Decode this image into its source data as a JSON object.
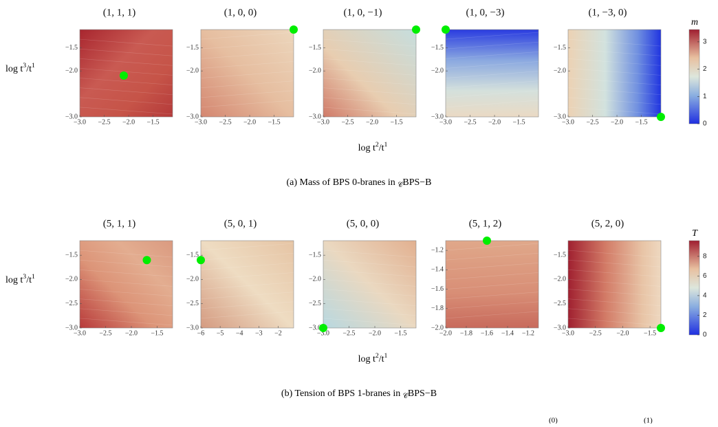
{
  "figure": {
    "rows": [
      {
        "x_label": [
          "log t",
          "2",
          "/t",
          "1"
        ],
        "y_label": [
          "log t",
          "3",
          "/t",
          "1"
        ],
        "caption": [
          "(a) Mass of BPS 0-branes in ",
          "𝒞",
          "BPS−B"
        ],
        "colorbar": {
          "label": "m",
          "lim": [
            0,
            3.45
          ],
          "ticks": [
            0,
            1,
            2,
            3
          ]
        },
        "panels": [
          {
            "title": "(1, 1, 1)",
            "xlim": [
              -3.0,
              -1.1
            ],
            "ylim": [
              -3.0,
              -1.1
            ],
            "xticks": [
              {
                "value": -3.0,
                "label": "−3.0"
              },
              {
                "value": -2.5,
                "label": "−2.5"
              },
              {
                "value": -2.0,
                "label": "−2.0"
              },
              {
                "value": -1.5,
                "label": "−1.5"
              }
            ],
            "yticks": [
              {
                "value": -1.5,
                "label": "−1.5"
              },
              {
                "value": -2.0,
                "label": "−2.0"
              },
              {
                "value": -3.0,
                "label": "−3.0"
              }
            ],
            "point": [
              -2.1,
              -2.1
            ]
          },
          {
            "title": "(1, 0, 0)",
            "xlim": [
              -3.0,
              -1.1
            ],
            "ylim": [
              -3.0,
              -1.1
            ],
            "xticks": [
              {
                "value": -3.0,
                "label": "−3.0"
              },
              {
                "value": -2.5,
                "label": "−2.5"
              },
              {
                "value": -2.0,
                "label": "−2.0"
              },
              {
                "value": -1.5,
                "label": "−1.5"
              }
            ],
            "yticks": [
              {
                "value": -1.5,
                "label": "−1.5"
              },
              {
                "value": -2.0,
                "label": "−2.0"
              },
              {
                "value": -3.0,
                "label": "−3.0"
              }
            ],
            "point": [
              -1.1,
              -1.1
            ]
          },
          {
            "title": "(1, 0, −1)",
            "xlim": [
              -3.0,
              -1.1
            ],
            "ylim": [
              -3.0,
              -1.1
            ],
            "xticks": [
              {
                "value": -3.0,
                "label": "−3.0"
              },
              {
                "value": -2.5,
                "label": "−2.5"
              },
              {
                "value": -2.0,
                "label": "−2.0"
              },
              {
                "value": -1.5,
                "label": "−1.5"
              }
            ],
            "yticks": [
              {
                "value": -1.5,
                "label": "−1.5"
              },
              {
                "value": -2.0,
                "label": "−2.0"
              },
              {
                "value": -3.0,
                "label": "−3.0"
              }
            ],
            "point": [
              -1.1,
              -1.1
            ]
          },
          {
            "title": "(1, 0, −3)",
            "xlim": [
              -3.0,
              -1.1
            ],
            "ylim": [
              -3.0,
              -1.1
            ],
            "xticks": [
              {
                "value": -3.0,
                "label": "−3.0"
              },
              {
                "value": -2.5,
                "label": "−2.5"
              },
              {
                "value": -2.0,
                "label": "−2.0"
              },
              {
                "value": -1.5,
                "label": "−1.5"
              }
            ],
            "yticks": [
              {
                "value": -1.5,
                "label": "−1.5"
              },
              {
                "value": -2.0,
                "label": "−2.0"
              },
              {
                "value": -3.0,
                "label": "−3.0"
              }
            ],
            "point": [
              -3.0,
              -1.1
            ]
          },
          {
            "title": "(1, −3, 0)",
            "xlim": [
              -3.0,
              -1.1
            ],
            "ylim": [
              -3.0,
              -1.1
            ],
            "xticks": [
              {
                "value": -3.0,
                "label": "−3.0"
              },
              {
                "value": -2.5,
                "label": "−2.5"
              },
              {
                "value": -2.0,
                "label": "−2.0"
              },
              {
                "value": -1.5,
                "label": "−1.5"
              }
            ],
            "yticks": [
              {
                "value": -1.5,
                "label": "−1.5"
              },
              {
                "value": -2.0,
                "label": "−2.0"
              },
              {
                "value": -3.0,
                "label": "−3.0"
              }
            ],
            "point": [
              -1.1,
              -3.0
            ]
          }
        ]
      },
      {
        "x_label": [
          "log t",
          "2",
          "/t",
          "1"
        ],
        "y_label": [
          "log t",
          "3",
          "/t",
          "1"
        ],
        "caption": [
          "(b) Tension of BPS 1-branes in ",
          "𝒞",
          "BPS−B"
        ],
        "colorbar": {
          "label": "T",
          "lim": [
            0,
            9.6
          ],
          "ticks": [
            0,
            2,
            4,
            6,
            8
          ]
        },
        "panels": [
          {
            "title": "(5, 1, 1)",
            "xlim": [
              -3.0,
              -1.2
            ],
            "ylim": [
              -3.0,
              -1.2
            ],
            "xticks": [
              {
                "value": -3.0,
                "label": "−3.0"
              },
              {
                "value": -2.5,
                "label": "−2.5"
              },
              {
                "value": -2.0,
                "label": "−2.0"
              },
              {
                "value": -1.5,
                "label": "−1.5"
              }
            ],
            "yticks": [
              {
                "value": -1.5,
                "label": "−1.5"
              },
              {
                "value": -2.0,
                "label": "−2.0"
              },
              {
                "value": -2.5,
                "label": "−2.5"
              },
              {
                "value": -3.0,
                "label": "−3.0"
              }
            ],
            "point": [
              -1.7,
              -1.6
            ]
          },
          {
            "title": "(5, 0, 1)",
            "xlim": [
              -6,
              -1.2
            ],
            "ylim": [
              -3.0,
              -1.2
            ],
            "xticks": [
              {
                "value": -6,
                "label": "−6"
              },
              {
                "value": -5,
                "label": "−5"
              },
              {
                "value": -4,
                "label": "−4"
              },
              {
                "value": -3,
                "label": "−3"
              },
              {
                "value": -2,
                "label": "−2"
              }
            ],
            "yticks": [
              {
                "value": -1.5,
                "label": "−1.5"
              },
              {
                "value": -2.0,
                "label": "−2.0"
              },
              {
                "value": -2.5,
                "label": "−2.5"
              },
              {
                "value": -3.0,
                "label": "−3.0"
              }
            ],
            "point": [
              -6,
              -1.6
            ]
          },
          {
            "title": "(5, 0, 0)",
            "xlim": [
              -3.0,
              -1.2
            ],
            "ylim": [
              -3.0,
              -1.2
            ],
            "xticks": [
              {
                "value": -3.0,
                "label": "−3.0"
              },
              {
                "value": -2.5,
                "label": "−2.5"
              },
              {
                "value": -2.0,
                "label": "−2.0"
              },
              {
                "value": -1.5,
                "label": "−1.5"
              }
            ],
            "yticks": [
              {
                "value": -1.5,
                "label": "−1.5"
              },
              {
                "value": -2.0,
                "label": "−2.0"
              },
              {
                "value": -2.5,
                "label": "−2.5"
              },
              {
                "value": -3.0,
                "label": "−3.0"
              }
            ],
            "point": [
              -3.0,
              -3.0
            ]
          },
          {
            "title": "(5, 1, 2)",
            "xlim": [
              -2.0,
              -1.1
            ],
            "ylim": [
              -2.0,
              -1.1
            ],
            "xticks": [
              {
                "value": -2.0,
                "label": "−2.0"
              },
              {
                "value": -1.8,
                "label": "−1.8"
              },
              {
                "value": -1.6,
                "label": "−1.6"
              },
              {
                "value": -1.4,
                "label": "−1.4"
              },
              {
                "value": -1.2,
                "label": "−1.2"
              }
            ],
            "yticks": [
              {
                "value": -1.2,
                "label": "−1.2"
              },
              {
                "value": -1.4,
                "label": "−1.4"
              },
              {
                "value": -1.6,
                "label": "−1.6"
              },
              {
                "value": -1.8,
                "label": "−1.8"
              },
              {
                "value": -2.0,
                "label": "−2.0"
              }
            ],
            "point": [
              -1.6,
              -1.1
            ]
          },
          {
            "title": "(5, 2, 0)",
            "xlim": [
              -3.0,
              -1.3
            ],
            "ylim": [
              -3.0,
              -1.2
            ],
            "xticks": [
              {
                "value": -3.0,
                "label": "−3.0"
              },
              {
                "value": -2.5,
                "label": "−2.5"
              },
              {
                "value": -2.0,
                "label": "−2.0"
              },
              {
                "value": -1.5,
                "label": "−1.5"
              }
            ],
            "yticks": [
              {
                "value": -1.5,
                "label": "−1.5"
              },
              {
                "value": -2.0,
                "label": "−2.0"
              },
              {
                "value": -2.5,
                "label": "−2.5"
              },
              {
                "value": -3.0,
                "label": "−3.0"
              }
            ],
            "point": [
              -1.3,
              -3.0
            ]
          }
        ]
      }
    ],
    "footer_fragments": [
      "(0)",
      "(1)"
    ]
  }
}
